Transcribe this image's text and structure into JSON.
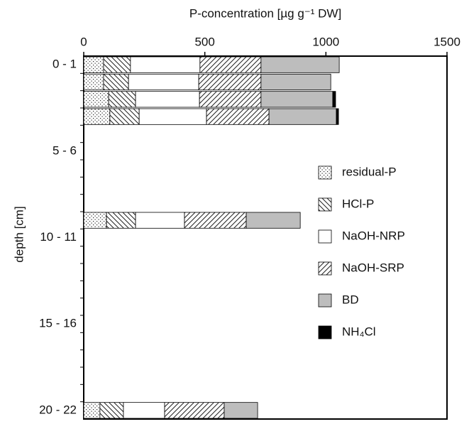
{
  "chart_data": {
    "type": "stacked-barh",
    "xlabel": "P-concentration [µg g⁻¹ DW]",
    "ylabel": "depth [cm]",
    "xlim": [
      0,
      1500
    ],
    "xticks": [
      0,
      500,
      1000,
      1500
    ],
    "categories": [
      "0 - 1",
      null,
      null,
      null,
      null,
      "5 - 6",
      null,
      null,
      null,
      null,
      "10 - 11",
      null,
      null,
      null,
      null,
      "15 - 16",
      null,
      null,
      null,
      null,
      "20 - 22"
    ],
    "legend": "right",
    "series": [
      {
        "name": "residual-P",
        "color": "#ffffff",
        "pattern": "dots",
        "values": [
          82,
          82,
          103,
          108,
          null,
          null,
          null,
          null,
          null,
          94,
          null,
          null,
          null,
          null,
          null,
          null,
          null,
          null,
          null,
          null,
          67
        ]
      },
      {
        "name": "HCl-P",
        "color": "#ffffff",
        "pattern": "backslash",
        "values": [
          111,
          103,
          111,
          121,
          null,
          null,
          null,
          null,
          null,
          120,
          null,
          null,
          null,
          null,
          null,
          null,
          null,
          null,
          null,
          null,
          97
        ]
      },
      {
        "name": "NaOH-NRP",
        "color": "#ffffff",
        "pattern": "none",
        "values": [
          287,
          290,
          264,
          278,
          null,
          null,
          null,
          null,
          null,
          202,
          null,
          null,
          null,
          null,
          null,
          null,
          null,
          null,
          null,
          null,
          170
        ]
      },
      {
        "name": "NaOH-SRP",
        "color": "#ffffff",
        "pattern": "slash",
        "values": [
          252,
          257,
          254,
          258,
          null,
          null,
          null,
          null,
          null,
          255,
          null,
          null,
          null,
          null,
          null,
          null,
          null,
          null,
          null,
          null,
          246
        ]
      },
      {
        "name": "BD",
        "color": "#bdbdbd",
        "pattern": "none",
        "values": [
          323,
          288,
          296,
          278,
          null,
          null,
          null,
          null,
          null,
          223,
          null,
          null,
          null,
          null,
          null,
          null,
          null,
          null,
          null,
          null,
          138
        ]
      },
      {
        "name": "NH₄Cl",
        "color": "#000000",
        "pattern": "none",
        "values": [
          0,
          0,
          12,
          9,
          null,
          null,
          null,
          null,
          null,
          0,
          null,
          null,
          null,
          null,
          null,
          null,
          null,
          null,
          null,
          null,
          0
        ]
      }
    ]
  }
}
